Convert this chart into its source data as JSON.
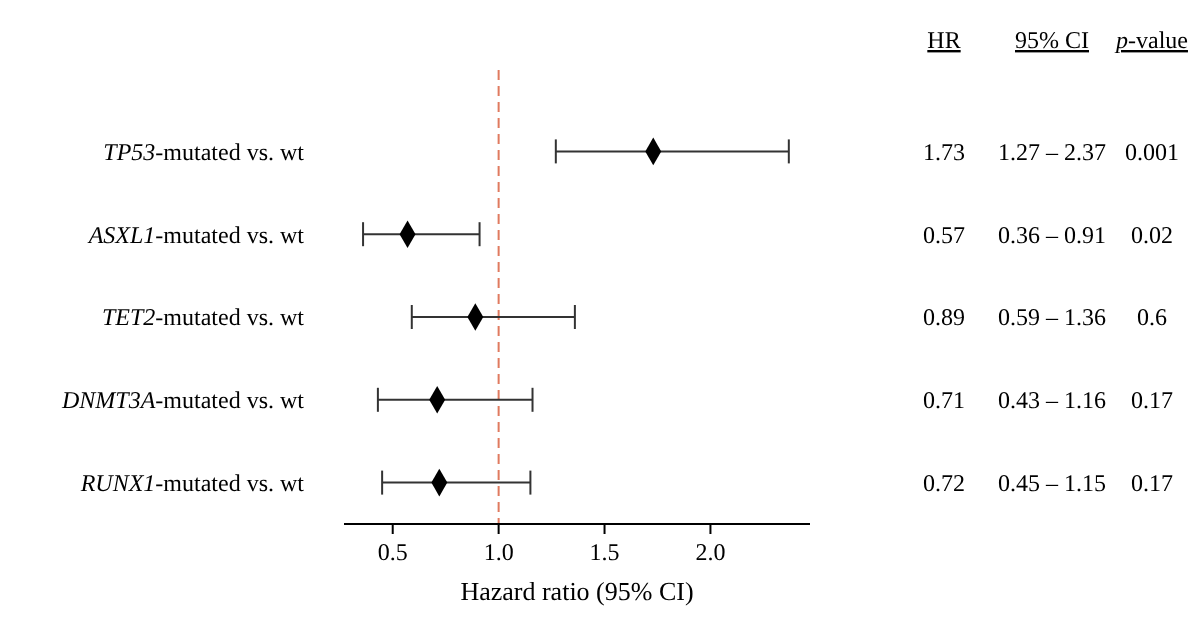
{
  "chart_data": {
    "type": "scatter",
    "orientation": "horizontal",
    "xlabel": "Hazard ratio (95% CI)",
    "categories": [
      "TP53-mutated vs. wt",
      "ASXL1-mutated vs. wt",
      "TET2-mutated vs. wt",
      "DNMT3A-mutated vs. wt",
      "RUNX1-mutated vs. wt"
    ],
    "values": [
      1.73,
      0.57,
      0.89,
      0.71,
      0.72
    ],
    "errors": [
      [
        1.27,
        2.37
      ],
      [
        0.36,
        0.91
      ],
      [
        0.59,
        1.36
      ],
      [
        0.43,
        1.16
      ],
      [
        0.45,
        1.15
      ]
    ],
    "color": "#000000",
    "marker": "diamond",
    "data_labels": true,
    "xlim": [
      0.27,
      2.47
    ],
    "xticks": [
      0.5,
      {
        "value": 1,
        "label": "1.0"
      },
      1.5,
      {
        "value": 2,
        "label": "2.0"
      }
    ],
    "ref_lines": [
      {
        "axis": "x",
        "value": 1,
        "color": "#e07a5f",
        "line_style": "dashed"
      }
    ],
    "annotations": [
      "HR",
      "95% CI",
      "p-value",
      "1.27 – 2.37",
      "0.001",
      "0.36 – 0.91",
      "0.02",
      "0.59 – 1.36",
      "0.6",
      "0.43 – 1.16",
      "0.17",
      "0.45 – 1.15",
      "0.17"
    ]
  }
}
